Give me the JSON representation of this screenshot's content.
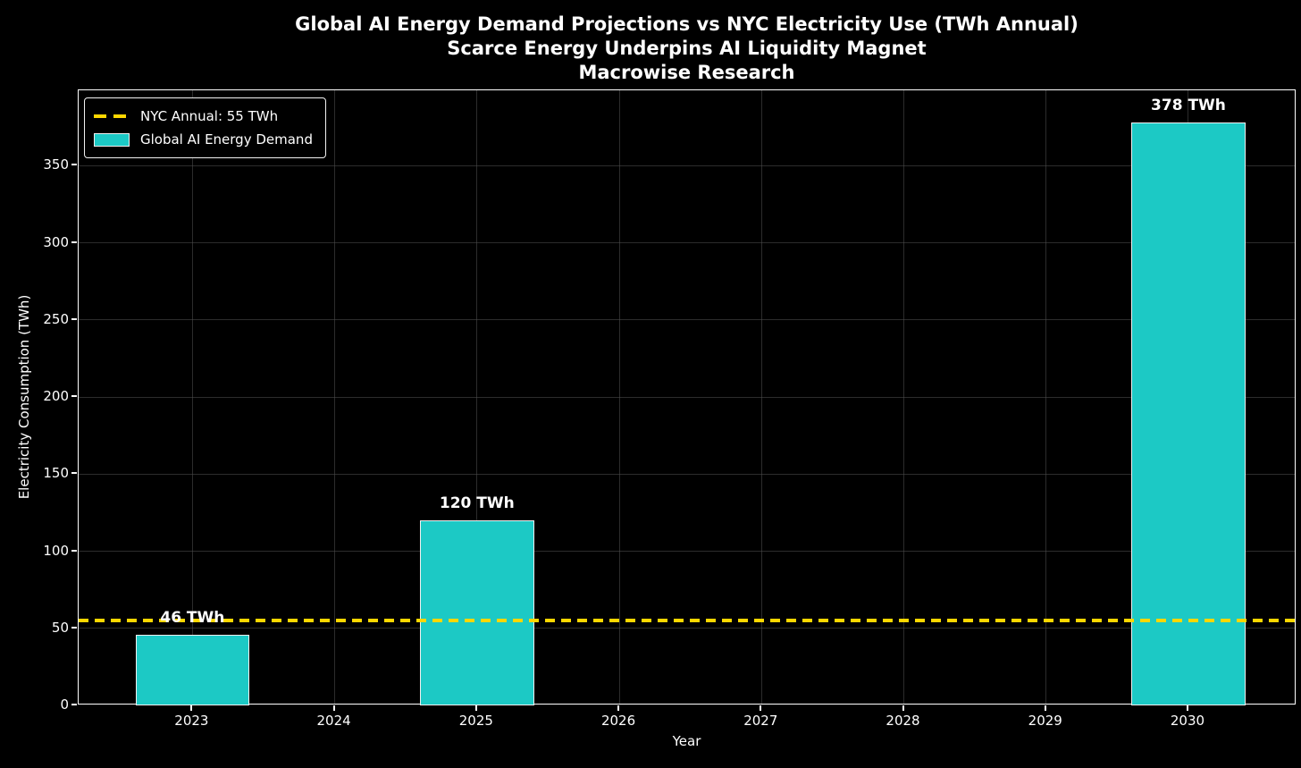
{
  "chart_data": {
    "type": "bar",
    "title_lines": [
      "Global AI Energy Demand Projections vs NYC Electricity Use (TWh Annual)",
      "Scarce Energy Underpins AI Liquidity Magnet",
      "Macrowise Research"
    ],
    "xlabel": "Year",
    "ylabel": "Electricity Consumption (TWh)",
    "x_ticks": [
      2023,
      2024,
      2025,
      2026,
      2027,
      2028,
      2029,
      2030
    ],
    "y_ticks": [
      0,
      50,
      100,
      150,
      200,
      250,
      300,
      350
    ],
    "xlim": [
      2022.2,
      2030.76
    ],
    "ylim": [
      0,
      399
    ],
    "bar_width_years": 0.8,
    "bars": [
      {
        "year": 2023,
        "value": 46,
        "label": "46 TWh"
      },
      {
        "year": 2025,
        "value": 120,
        "label": "120 TWh"
      },
      {
        "year": 2030,
        "value": 378,
        "label": "378 TWh"
      }
    ],
    "reference_line": {
      "value": 55,
      "label": "NYC Annual: 55 TWh",
      "style": "dashed"
    },
    "legend": {
      "position": "upper left",
      "entries": [
        {
          "sample": "dashed-line",
          "label": "NYC Annual: 55 TWh"
        },
        {
          "sample": "filled-patch",
          "label": "Global AI Energy Demand"
        }
      ]
    },
    "grid": true,
    "colors": {
      "background": "#000000",
      "text": "#FFFFFF",
      "bar_fill": "#1CC9C5",
      "bar_edge": "#F0F0F0",
      "reference_line": "#FFD700",
      "grid": "#505050",
      "spine": "#FFFFFF"
    }
  }
}
